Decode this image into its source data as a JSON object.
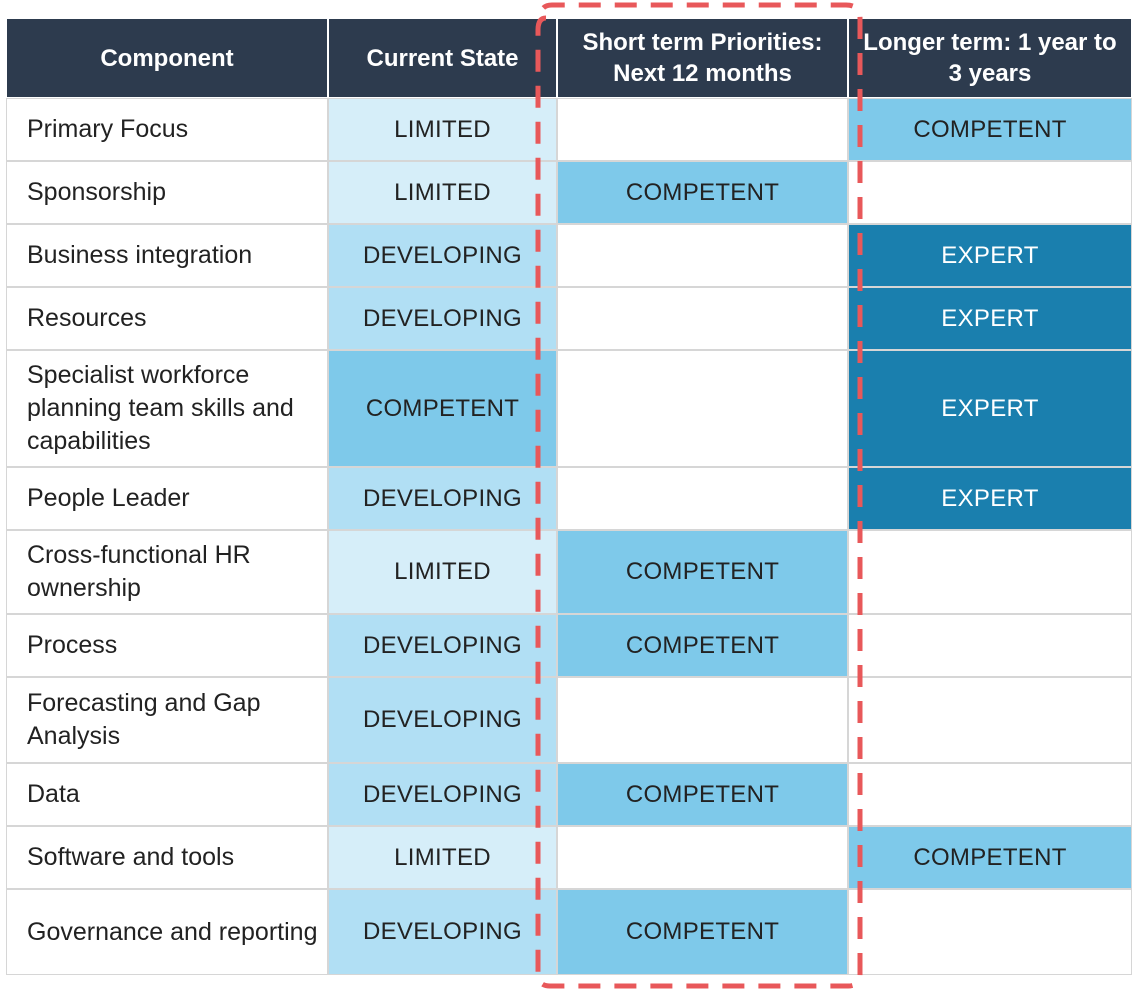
{
  "headers": {
    "component": "Component",
    "current": "Current State",
    "short_term": "Short term Priorities: Next 12 months",
    "long_term": "Longer term: 1 year to 3 years"
  },
  "rows": [
    {
      "component": "Primary Focus",
      "current": "LIMITED",
      "short_term": "",
      "long_term": "COMPETENT"
    },
    {
      "component": "Sponsorship",
      "current": "LIMITED",
      "short_term": "COMPETENT",
      "long_term": ""
    },
    {
      "component": "Business integration",
      "current": "DEVELOPING",
      "short_term": "",
      "long_term": "EXPERT"
    },
    {
      "component": "Resources",
      "current": "DEVELOPING",
      "short_term": "",
      "long_term": "EXPERT"
    },
    {
      "component": "Specialist workforce planning team skills and capabilities",
      "current": "COMPETENT",
      "short_term": "",
      "long_term": "EXPERT"
    },
    {
      "component": "People Leader",
      "current": "DEVELOPING",
      "short_term": "",
      "long_term": "EXPERT"
    },
    {
      "component": "Cross-functional HR ownership",
      "current": "LIMITED",
      "short_term": "COMPETENT",
      "long_term": ""
    },
    {
      "component": "Process",
      "current": "DEVELOPING",
      "short_term": "COMPETENT",
      "long_term": ""
    },
    {
      "component": "Forecasting and Gap Analysis",
      "current": "DEVELOPING",
      "short_term": "",
      "long_term": ""
    },
    {
      "component": "Data",
      "current": "DEVELOPING",
      "short_term": "COMPETENT",
      "long_term": ""
    },
    {
      "component": "Software and tools",
      "current": "LIMITED",
      "short_term": "",
      "long_term": "COMPETENT"
    },
    {
      "component": "Governance and reporting",
      "current": "DEVELOPING",
      "short_term": "COMPETENT",
      "long_term": ""
    }
  ],
  "colors": {
    "header": "#2d3b4e",
    "limited": "#d6eef9",
    "developing": "#b1dff4",
    "competent": "#7ec9ea",
    "expert": "#1a7fae",
    "highlight_dash": "#e8585a"
  }
}
